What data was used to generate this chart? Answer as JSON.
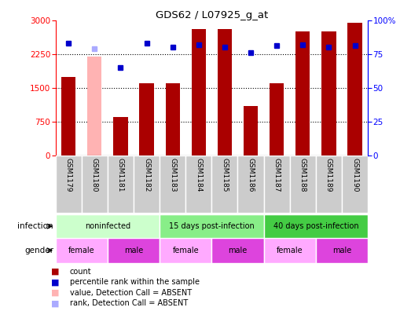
{
  "title": "GDS62 / L07925_g_at",
  "samples": [
    "GSM1179",
    "GSM1180",
    "GSM1181",
    "GSM1182",
    "GSM1183",
    "GSM1184",
    "GSM1185",
    "GSM1186",
    "GSM1187",
    "GSM1188",
    "GSM1189",
    "GSM1190"
  ],
  "counts": [
    1750,
    2200,
    850,
    1600,
    1600,
    2800,
    2800,
    1100,
    1600,
    2750,
    2750,
    2950
  ],
  "absent_count": [
    false,
    true,
    false,
    false,
    false,
    false,
    false,
    false,
    false,
    false,
    false,
    false
  ],
  "ranks": [
    83,
    79,
    65,
    83,
    80,
    82,
    80,
    76,
    81,
    82,
    80,
    81
  ],
  "absent_rank": [
    false,
    true,
    false,
    false,
    false,
    false,
    false,
    false,
    false,
    false,
    false,
    false
  ],
  "bar_color_normal": "#aa0000",
  "bar_color_absent": "#ffb3b3",
  "rank_color_normal": "#0000cc",
  "rank_color_absent": "#aaaaff",
  "yticks_left": [
    0,
    750,
    1500,
    2250,
    3000
  ],
  "yticks_right": [
    0,
    25,
    50,
    75,
    100
  ],
  "yticklabels_right": [
    "0",
    "25",
    "50",
    "75",
    "100%"
  ],
  "infection_groups": [
    {
      "label": "noninfected",
      "start": 0,
      "end": 4,
      "color": "#ccffcc"
    },
    {
      "label": "15 days post-infection",
      "start": 4,
      "end": 8,
      "color": "#88ee88"
    },
    {
      "label": "40 days post-infection",
      "start": 8,
      "end": 12,
      "color": "#44cc44"
    }
  ],
  "gender_groups": [
    {
      "label": "female",
      "start": 0,
      "end": 2,
      "color": "#ffaaff"
    },
    {
      "label": "male",
      "start": 2,
      "end": 4,
      "color": "#dd44dd"
    },
    {
      "label": "female",
      "start": 4,
      "end": 6,
      "color": "#ffaaff"
    },
    {
      "label": "male",
      "start": 6,
      "end": 8,
      "color": "#dd44dd"
    },
    {
      "label": "female",
      "start": 8,
      "end": 10,
      "color": "#ffaaff"
    },
    {
      "label": "male",
      "start": 10,
      "end": 12,
      "color": "#dd44dd"
    }
  ],
  "sample_label_bg": "#cccccc",
  "infection_label": "infection",
  "gender_label": "gender",
  "legend_items": [
    {
      "label": "count",
      "color": "#aa0000"
    },
    {
      "label": "percentile rank within the sample",
      "color": "#0000cc"
    },
    {
      "label": "value, Detection Call = ABSENT",
      "color": "#ffb3b3"
    },
    {
      "label": "rank, Detection Call = ABSENT",
      "color": "#aaaaff"
    }
  ]
}
